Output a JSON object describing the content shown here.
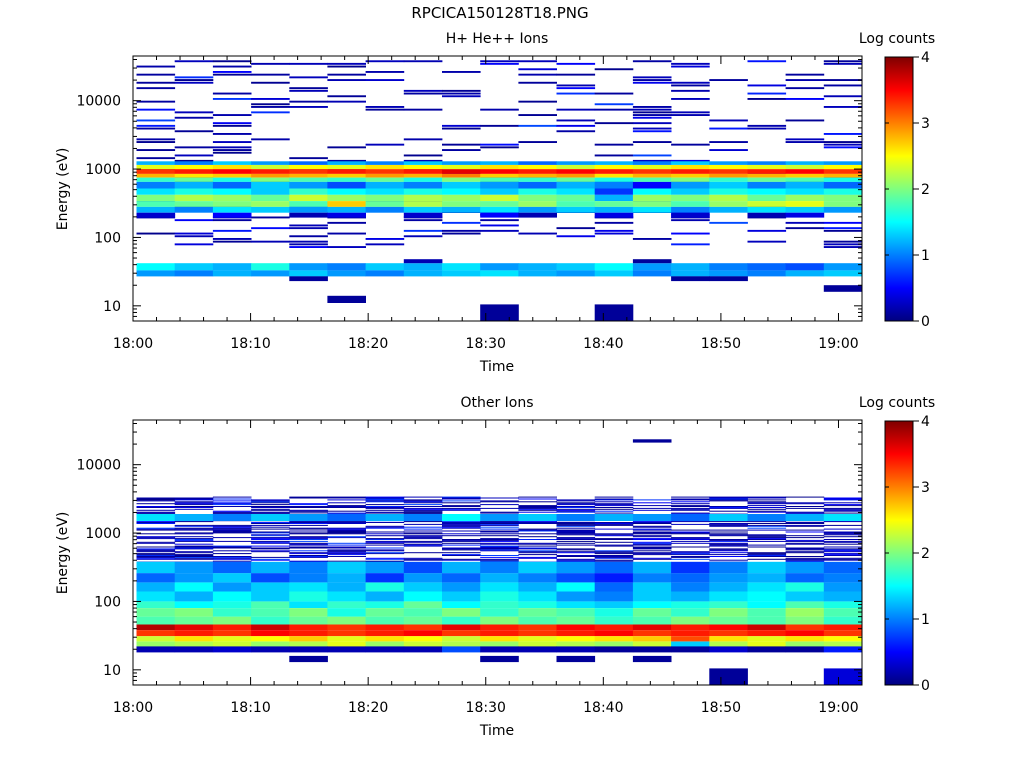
{
  "page": {
    "title": "RPCICA150128T18.PNG"
  },
  "colors": {
    "jet": [
      "#00007f",
      "#0000ff",
      "#007fff",
      "#00ffff",
      "#7fff7f",
      "#ffff00",
      "#ff7f00",
      "#ff0000",
      "#7f0000"
    ]
  },
  "chart_data": [
    {
      "type": "heatmap",
      "title": "H+ He++ Ions",
      "xlabel": "Time",
      "ylabel": "Energy (eV)",
      "x_ticks": [
        "18:00",
        "18:10",
        "18:20",
        "18:30",
        "18:40",
        "18:50",
        "19:00"
      ],
      "xlim": [
        "18:00",
        "19:02"
      ],
      "y_scale": "log",
      "ylim": [
        6,
        45000
      ],
      "y_ticks": [
        "10",
        "100",
        "1000",
        "10000"
      ],
      "colorbar": {
        "label": "Log counts",
        "range": [
          0,
          4
        ],
        "ticks": [
          "0",
          "1",
          "2",
          "3",
          "4"
        ]
      },
      "time_bins": 19,
      "bands": [
        {
          "lo": 850,
          "hi": 1000,
          "values": [
            3.3,
            3.4,
            3.5,
            3.4,
            3.3,
            3.4,
            3.3,
            3.4,
            3.6,
            3.5,
            3.4,
            3.5,
            3.4,
            3.3,
            3.4,
            3.3,
            3.4,
            3.5,
            3.3
          ]
        },
        {
          "lo": 750,
          "hi": 850,
          "values": [
            2.8,
            2.6,
            2.7,
            2.9,
            2.8,
            2.7,
            2.9,
            2.8,
            3.0,
            2.7,
            2.8,
            2.9,
            2.6,
            2.8,
            2.7,
            2.9,
            2.8,
            2.7,
            2.8
          ]
        },
        {
          "lo": 1000,
          "hi": 1150,
          "values": [
            2.4,
            2.5,
            2.6,
            2.3,
            2.5,
            2.4,
            2.6,
            2.5,
            2.4,
            2.6,
            2.5,
            2.3,
            2.5,
            2.4,
            2.6,
            2.5,
            2.4,
            2.3,
            2.5
          ]
        },
        {
          "lo": 1150,
          "hi": 1300,
          "values": [
            1.2,
            1.0,
            1.3,
            1.1,
            0.9,
            1.2,
            1.0,
            1.3,
            1.1,
            1.2,
            0.9,
            1.1,
            1.2,
            1.0,
            1.3,
            1.1,
            1.0,
            1.2,
            1.1
          ]
        },
        {
          "lo": 650,
          "hi": 750,
          "values": [
            1.7,
            1.9,
            1.6,
            2.0,
            1.8,
            1.7,
            1.9,
            1.6,
            2.0,
            1.8,
            1.7,
            1.9,
            1.6,
            1.8,
            2.0,
            1.7,
            1.9,
            1.8,
            1.6
          ]
        },
        {
          "lo": 520,
          "hi": 650,
          "values": [
            1.0,
            1.2,
            0.9,
            1.3,
            1.1,
            0.8,
            1.2,
            1.0,
            1.3,
            1.1,
            0.9,
            1.2,
            1.0,
            0.5,
            1.1,
            1.3,
            1.0,
            1.2,
            0.9
          ]
        },
        {
          "lo": 420,
          "hi": 520,
          "values": [
            1.4,
            1.6,
            1.5,
            1.3,
            1.7,
            1.5,
            1.4,
            1.6,
            1.5,
            1.3,
            1.6,
            1.4,
            0.7,
            1.5,
            1.3,
            1.6,
            1.5,
            1.4,
            1.6
          ]
        },
        {
          "lo": 340,
          "hi": 420,
          "values": [
            2.0,
            2.2,
            2.1,
            1.9,
            2.3,
            2.1,
            2.0,
            2.2,
            2.1,
            2.3,
            2.0,
            1.9,
            1.2,
            2.1,
            2.0,
            2.2,
            1.9,
            2.1,
            2.0
          ]
        },
        {
          "lo": 280,
          "hi": 340,
          "values": [
            1.8,
            1.9,
            2.0,
            2.1,
            1.8,
            2.7,
            1.9,
            2.2,
            2.0,
            1.9,
            2.1,
            1.8,
            1.9,
            2.0,
            1.8,
            2.1,
            2.3,
            2.4,
            2.0
          ]
        },
        {
          "lo": 230,
          "hi": 280,
          "values": [
            1.2,
            1.0,
            1.4,
            1.3,
            1.1,
            1.2,
            1.0,
            1.3,
            1.2,
            1.4,
            1.1,
            1.3,
            1.2,
            1.4,
            1.0,
            1.2,
            1.4,
            1.3,
            1.1
          ]
        },
        {
          "lo": 195,
          "hi": 230,
          "values": [
            0.3,
            0,
            0.5,
            0,
            0.2,
            0.4,
            0,
            0.3,
            0,
            0.5,
            0.2,
            0,
            0.4,
            0,
            0.3,
            0,
            0.2,
            0.4,
            0
          ]
        },
        {
          "lo": 33,
          "hi": 42,
          "values": [
            1.5,
            1.3,
            1.2,
            1.6,
            1.1,
            1.0,
            1.3,
            1.2,
            1.4,
            1.1,
            1.2,
            1.3,
            1.5,
            1.1,
            1.2,
            1.0,
            0.9,
            0.8,
            1.1
          ]
        },
        {
          "lo": 27,
          "hi": 33,
          "values": [
            1.1,
            1.0,
            1.2,
            1.1,
            1.3,
            1.1,
            1.0,
            1.2,
            1.3,
            1.4,
            1.2,
            1.1,
            1.3,
            1.0,
            1.2,
            1.1,
            1.0,
            1.2,
            1.3
          ]
        },
        {
          "lo": 42,
          "hi": 48,
          "values": [
            0,
            0,
            0,
            0,
            0,
            0,
            0,
            0.2,
            0,
            0,
            0,
            0,
            0,
            0.1,
            0,
            0,
            0,
            0,
            0
          ]
        },
        {
          "lo": 23,
          "hi": 27,
          "values": [
            0,
            0,
            0,
            0,
            0.1,
            0,
            0,
            0,
            0,
            0,
            0,
            0,
            0,
            0,
            0.1,
            0.1,
            0,
            0,
            0
          ]
        },
        {
          "lo": 11,
          "hi": 14,
          "values": [
            0,
            0,
            0,
            0,
            0,
            0.1,
            0,
            0,
            0,
            0,
            0,
            0,
            0,
            0,
            0,
            0,
            0,
            0,
            0
          ]
        },
        {
          "lo": 6,
          "hi": 10.5,
          "values": [
            0,
            0,
            0,
            0,
            0,
            0,
            0,
            0,
            0,
            0.1,
            0,
            0,
            0.1,
            0,
            0,
            0,
            0,
            0,
            0
          ]
        },
        {
          "lo": 16,
          "hi": 20,
          "values": [
            0,
            0,
            0,
            0,
            0,
            0,
            0,
            0,
            0,
            0,
            0,
            0,
            0,
            0,
            0,
            0,
            0,
            0,
            0.1
          ]
        }
      ],
      "sparse": {
        "lo": 70,
        "hi": 40000,
        "seed": 7,
        "density": 0.22
      }
    },
    {
      "type": "heatmap",
      "title": "Other Ions",
      "xlabel": "Time",
      "ylabel": "Energy (eV)",
      "x_ticks": [
        "18:00",
        "18:10",
        "18:20",
        "18:30",
        "18:40",
        "18:50",
        "19:00"
      ],
      "xlim": [
        "18:00",
        "19:02"
      ],
      "y_scale": "log",
      "ylim": [
        6,
        45000
      ],
      "y_ticks": [
        "10",
        "100",
        "1000",
        "10000"
      ],
      "colorbar": {
        "label": "Log counts",
        "range": [
          0,
          4
        ],
        "ticks": [
          "0",
          "1",
          "2",
          "3",
          "4"
        ]
      },
      "time_bins": 19,
      "bands": [
        {
          "lo": 38,
          "hi": 46,
          "values": [
            3.8,
            3.6,
            3.4,
            3.7,
            3.4,
            3.3,
            3.4,
            3.3,
            3.6,
            3.4,
            3.3,
            3.5,
            3.4,
            3.6,
            3.4,
            3.5,
            3.7,
            3.3,
            3.4
          ]
        },
        {
          "lo": 31,
          "hi": 38,
          "values": [
            3.3,
            3.4,
            3.3,
            3.5,
            3.4,
            3.3,
            3.4,
            3.5,
            3.3,
            3.4,
            3.3,
            3.4,
            3.5,
            3.3,
            3.4,
            3.3,
            3.4,
            3.5,
            3.3
          ]
        },
        {
          "lo": 26,
          "hi": 31,
          "values": [
            2.3,
            2.6,
            2.4,
            2.5,
            2.7,
            2.4,
            2.6,
            2.5,
            2.3,
            2.6,
            2.4,
            2.5,
            2.6,
            2.7,
            3.2,
            2.6,
            2.4,
            2.6,
            2.5
          ]
        },
        {
          "lo": 22,
          "hi": 26,
          "values": [
            2.1,
            2.2,
            2.3,
            2.1,
            2.2,
            2.4,
            2.1,
            2.3,
            2.2,
            2.1,
            2.3,
            2.2,
            2.1,
            2.3,
            1.3,
            2.2,
            2.4,
            2.1,
            2.2
          ]
        },
        {
          "lo": 18,
          "hi": 22,
          "values": [
            0.2,
            0.2,
            0.3,
            0.2,
            0.2,
            0.2,
            0.2,
            0.2,
            0.8,
            0.2,
            0.2,
            0.2,
            0.1,
            0.1,
            0.1,
            0.3,
            0.1,
            0.1,
            0.6
          ]
        },
        {
          "lo": 46,
          "hi": 60,
          "values": [
            1.8,
            1.9,
            2.0,
            1.7,
            1.9,
            2.0,
            1.8,
            1.9,
            1.7,
            2.0,
            1.8,
            1.9,
            1.7,
            1.8,
            2.0,
            1.9,
            1.8,
            2.0,
            1.7
          ]
        },
        {
          "lo": 60,
          "hi": 80,
          "values": [
            1.9,
            2.0,
            1.7,
            1.8,
            2.0,
            1.6,
            1.9,
            1.8,
            2.0,
            1.7,
            1.9,
            1.8,
            1.6,
            1.9,
            1.7,
            2.0,
            1.8,
            2.1,
            1.8
          ]
        },
        {
          "lo": 80,
          "hi": 100,
          "values": [
            1.7,
            1.5,
            1.6,
            1.8,
            1.4,
            1.7,
            1.6,
            1.9,
            1.5,
            1.7,
            1.6,
            1.4,
            1.3,
            1.5,
            1.6,
            1.7,
            1.5,
            1.8,
            1.6
          ]
        },
        {
          "lo": 100,
          "hi": 140,
          "values": [
            1.4,
            1.2,
            1.5,
            1.3,
            1.6,
            1.4,
            1.2,
            1.5,
            1.3,
            1.6,
            1.4,
            1.1,
            1.0,
            1.3,
            1.2,
            1.4,
            1.5,
            1.3,
            1.2
          ]
        },
        {
          "lo": 140,
          "hi": 190,
          "values": [
            1.2,
            1.5,
            1.1,
            1.3,
            1.4,
            1.2,
            1.6,
            1.3,
            1.1,
            1.4,
            1.2,
            1.5,
            0.9,
            1.3,
            1.0,
            1.2,
            1.4,
            1.6,
            1.1
          ]
        },
        {
          "lo": 190,
          "hi": 260,
          "values": [
            0.9,
            1.1,
            1.3,
            0.8,
            1.0,
            1.2,
            0.7,
            1.1,
            0.9,
            1.2,
            1.0,
            0.8,
            0.6,
            1.0,
            0.9,
            1.1,
            1.2,
            0.9,
            1.0
          ]
        },
        {
          "lo": 260,
          "hi": 380,
          "values": [
            1.3,
            1.1,
            0.9,
            1.2,
            1.0,
            1.3,
            1.1,
            0.8,
            1.2,
            1.0,
            1.3,
            1.1,
            0.9,
            1.2,
            0.7,
            1.0,
            1.3,
            1.1,
            0.9
          ]
        },
        {
          "lo": 1500,
          "hi": 1900,
          "values": [
            1.4,
            1.2,
            1.0,
            1.3,
            1.1,
            0.9,
            1.2,
            1.0,
            1.5,
            1.1,
            1.3,
            1.0,
            1.2,
            1.1,
            0.9,
            1.3,
            1.0,
            1.2,
            1.4
          ]
        }
      ],
      "sparse": {
        "lo": 380,
        "hi": 3500,
        "seed": 13,
        "density": 0.55
      },
      "extra_cells": [
        {
          "bin": 13,
          "lo": 21000,
          "hi": 23500,
          "value": 0.1
        },
        {
          "bin": 4,
          "lo": 13,
          "hi": 16,
          "value": 0.1
        },
        {
          "bin": 9,
          "lo": 13,
          "hi": 16,
          "value": 0.1
        },
        {
          "bin": 11,
          "lo": 13,
          "hi": 16,
          "value": 0.1
        },
        {
          "bin": 13,
          "lo": 13,
          "hi": 16,
          "value": 0.1
        },
        {
          "bin": 15,
          "lo": 6,
          "hi": 10.5,
          "value": 0.1
        },
        {
          "bin": 18,
          "lo": 6,
          "hi": 10.5,
          "value": 0.35
        }
      ]
    }
  ]
}
